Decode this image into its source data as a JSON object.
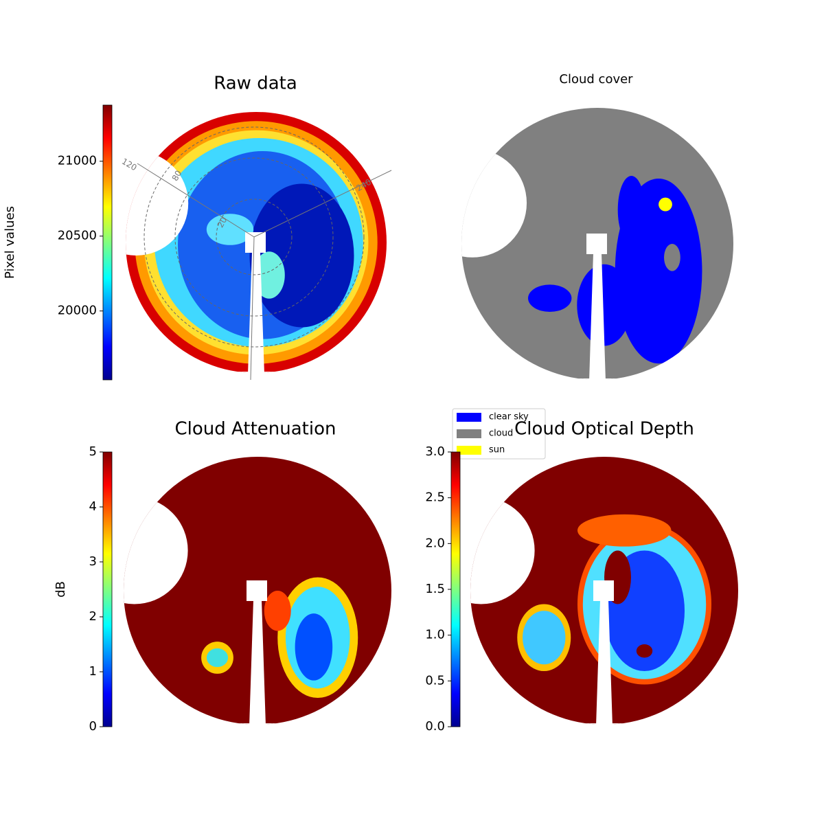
{
  "chart_data": [
    {
      "type": "sky-image",
      "title": "Raw data",
      "colorbar_label": "Pixel values",
      "ylim": [
        19540,
        21375
      ],
      "yticks": [
        20000,
        20500,
        21000
      ],
      "polar_labels": [
        "120",
        "80",
        "20",
        "240"
      ]
    },
    {
      "type": "sky-image",
      "title": "Cloud cover",
      "series": [
        {
          "name": "clear sky",
          "color": "#0000ff"
        },
        {
          "name": "cloud",
          "color": "#808080"
        },
        {
          "name": "sun",
          "color": "#ffff00"
        }
      ]
    },
    {
      "type": "sky-image",
      "title": "Cloud Attenuation",
      "colorbar_label": "dB",
      "ylim": [
        0,
        5
      ],
      "yticks": [
        0,
        1,
        2,
        3,
        4,
        5
      ]
    },
    {
      "type": "sky-image",
      "title": "Cloud Optical Depth",
      "ylim": [
        0,
        3
      ],
      "yticks": [
        {
          "value": 0,
          "label": "0.0"
        },
        {
          "value": 0.5,
          "label": "0.5"
        },
        {
          "value": 1,
          "label": "1.0"
        },
        {
          "value": 1.5,
          "label": "1.5"
        },
        {
          "value": 2,
          "label": "2.0"
        },
        {
          "value": 2.5,
          "label": "2.5"
        },
        {
          "value": 3,
          "label": "3.0"
        }
      ]
    }
  ]
}
